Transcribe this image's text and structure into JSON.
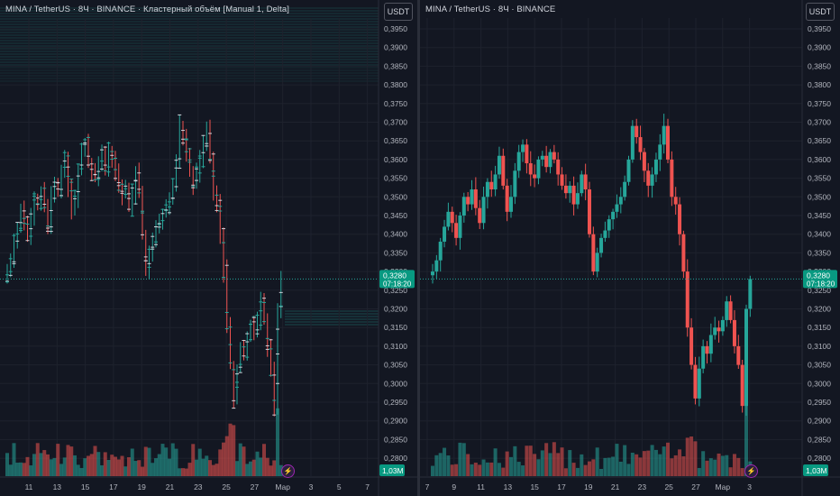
{
  "left_chart": {
    "title": "MINA / TetherUS · 8Ч · BINANCE · Кластерный объём [Manual 1, Delta]",
    "unit_label": "USDT",
    "price_label": "0,3280",
    "countdown": "07:18:20",
    "volume_label": "1,03M",
    "x_ticks": [
      "11",
      "13",
      "15",
      "17",
      "19",
      "21",
      "23",
      "25",
      "27",
      "Мар",
      "3",
      "5",
      "7"
    ]
  },
  "right_chart": {
    "title": "MINA / TetherUS · 8Ч · BINANCE",
    "unit_label": "USDT",
    "price_label": "0,3280",
    "countdown": "07:18:20",
    "volume_label": "1,03M",
    "x_ticks": [
      "7",
      "9",
      "11",
      "13",
      "15",
      "17",
      "19",
      "21",
      "23",
      "25",
      "27",
      "Мар",
      "3"
    ]
  },
  "y_ticks": [
    "0,3950",
    "0,3900",
    "0,3850",
    "0,3800",
    "0,3750",
    "0,3700",
    "0,3650",
    "0,3600",
    "0,3550",
    "0,3500",
    "0,3450",
    "0,3400",
    "0,3350",
    "0,3300",
    "0,3250",
    "0,3200",
    "0,3150",
    "0,3100",
    "0,3050",
    "0,3000",
    "0,2950",
    "0,2900",
    "0,2850",
    "0,2800"
  ],
  "colors": {
    "up": "#26a69a",
    "down": "#ef5350",
    "grid": "#1e222d",
    "text": "#b2b5be",
    "label_bg": "#089981"
  },
  "icons": {
    "flash": "lightning-icon"
  }
}
